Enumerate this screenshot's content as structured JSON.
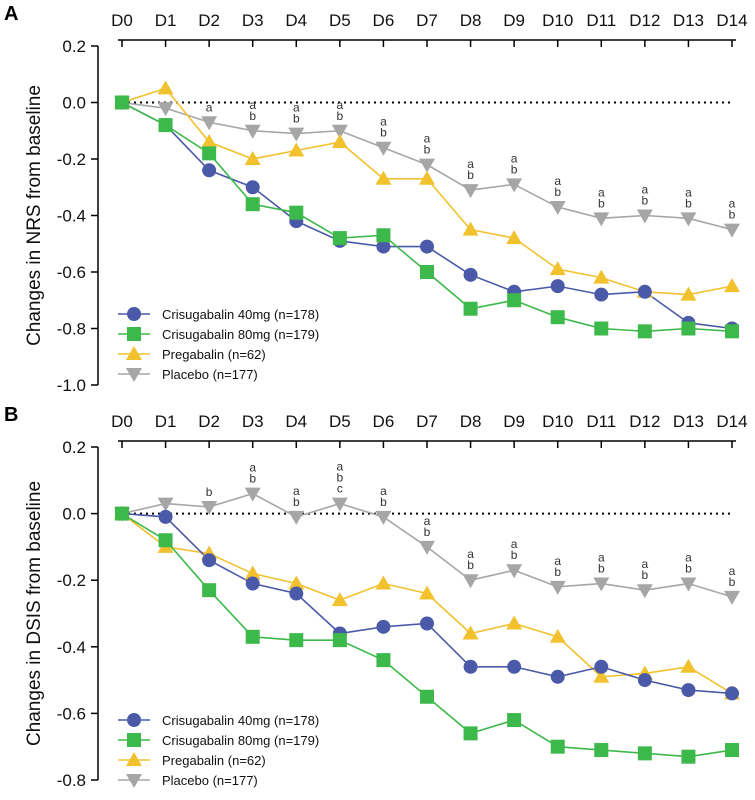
{
  "chart_data": [
    {
      "type": "line",
      "panel": "A",
      "title": "",
      "xlabel": "",
      "ylabel": "Changes in NRS from baseline",
      "categories": [
        "D0",
        "D1",
        "D2",
        "D3",
        "D4",
        "D5",
        "D6",
        "D7",
        "D8",
        "D9",
        "D10",
        "D11",
        "D12",
        "D13",
        "D14"
      ],
      "ylim": [
        -1.0,
        0.2
      ],
      "yticks": [
        0.2,
        0.0,
        -0.2,
        -0.4,
        -0.6,
        -0.8,
        -1.0
      ],
      "ytick_labels": [
        "0.2",
        "0.0",
        "-0.2",
        "-0.4",
        "-0.6",
        "-0.8",
        "-1.0"
      ],
      "reference_line": 0.0,
      "series": [
        {
          "name": "Crisugabalin 40mg (n=178)",
          "color": "#4a5aa8",
          "marker": "circle",
          "values": [
            0.0,
            -0.08,
            -0.24,
            -0.3,
            -0.42,
            -0.49,
            -0.51,
            -0.51,
            -0.61,
            -0.67,
            -0.65,
            -0.68,
            -0.67,
            -0.78,
            -0.8
          ]
        },
        {
          "name": "Crisugabalin 80mg (n=179)",
          "color": "#3cb94a",
          "marker": "square",
          "values": [
            0.0,
            -0.08,
            -0.18,
            -0.36,
            -0.39,
            -0.48,
            -0.47,
            -0.6,
            -0.73,
            -0.7,
            -0.76,
            -0.8,
            -0.81,
            -0.8,
            -0.81
          ]
        },
        {
          "name": "Pregabalin (n=62)",
          "color": "#f2c12e",
          "marker": "triangle-up",
          "values": [
            0.0,
            0.05,
            -0.14,
            -0.2,
            -0.17,
            -0.14,
            -0.27,
            -0.27,
            -0.45,
            -0.48,
            -0.59,
            -0.62,
            -0.67,
            -0.68,
            -0.65
          ]
        },
        {
          "name": "Placebo (n=177)",
          "color": "#a6a6a6",
          "marker": "triangle-down",
          "values": [
            0.0,
            -0.02,
            -0.07,
            -0.1,
            -0.11,
            -0.1,
            -0.16,
            -0.22,
            -0.31,
            -0.29,
            -0.37,
            -0.41,
            -0.4,
            -0.41,
            -0.45
          ]
        }
      ],
      "annotations": [
        {
          "day": "D2",
          "lines": [
            "a"
          ]
        },
        {
          "day": "D3",
          "lines": [
            "a",
            "b"
          ]
        },
        {
          "day": "D4",
          "lines": [
            "a",
            "b"
          ]
        },
        {
          "day": "D5",
          "lines": [
            "a",
            "b"
          ]
        },
        {
          "day": "D6",
          "lines": [
            "a",
            "b"
          ]
        },
        {
          "day": "D7",
          "lines": [
            "a",
            "b"
          ]
        },
        {
          "day": "D8",
          "lines": [
            "a",
            "b"
          ]
        },
        {
          "day": "D9",
          "lines": [
            "a",
            "b"
          ]
        },
        {
          "day": "D10",
          "lines": [
            "a",
            "b"
          ]
        },
        {
          "day": "D11",
          "lines": [
            "a",
            "b"
          ]
        },
        {
          "day": "D12",
          "lines": [
            "a",
            "b"
          ]
        },
        {
          "day": "D13",
          "lines": [
            "a",
            "b"
          ]
        },
        {
          "day": "D14",
          "lines": [
            "a",
            "b"
          ]
        }
      ],
      "legend_position": "bottom-left"
    },
    {
      "type": "line",
      "panel": "B",
      "title": "",
      "xlabel": "",
      "ylabel": "Changes in DSIS from baseline",
      "categories": [
        "D0",
        "D1",
        "D2",
        "D3",
        "D4",
        "D5",
        "D6",
        "D7",
        "D8",
        "D9",
        "D10",
        "D11",
        "D12",
        "D13",
        "D14"
      ],
      "ylim": [
        -0.8,
        0.2
      ],
      "yticks": [
        0.2,
        0.0,
        -0.2,
        -0.4,
        -0.6,
        -0.8
      ],
      "ytick_labels": [
        "0.2",
        "0.0",
        "-0.2",
        "-0.4",
        "-0.6",
        "-0.8"
      ],
      "reference_line": 0.0,
      "series": [
        {
          "name": "Crisugabalin 40mg (n=178)",
          "color": "#4a5aa8",
          "marker": "circle",
          "values": [
            0.0,
            -0.01,
            -0.14,
            -0.21,
            -0.24,
            -0.36,
            -0.34,
            -0.33,
            -0.46,
            -0.46,
            -0.49,
            -0.46,
            -0.5,
            -0.53,
            -0.54
          ]
        },
        {
          "name": "Crisugabalin 80mg (n=179)",
          "color": "#3cb94a",
          "marker": "square",
          "values": [
            0.0,
            -0.08,
            -0.23,
            -0.37,
            -0.38,
            -0.38,
            -0.44,
            -0.55,
            -0.66,
            -0.62,
            -0.7,
            -0.71,
            -0.72,
            -0.73,
            -0.71
          ]
        },
        {
          "name": "Pregabalin (n=62)",
          "color": "#f2c12e",
          "marker": "triangle-up",
          "values": [
            0.0,
            -0.1,
            -0.12,
            -0.18,
            -0.21,
            -0.26,
            -0.21,
            -0.24,
            -0.36,
            -0.33,
            -0.37,
            -0.49,
            -0.48,
            -0.46,
            -0.54
          ]
        },
        {
          "name": "Placebo (n=177)",
          "color": "#a6a6a6",
          "marker": "triangle-down",
          "values": [
            0.0,
            0.03,
            0.02,
            0.06,
            -0.01,
            0.03,
            -0.01,
            -0.1,
            -0.2,
            -0.17,
            -0.22,
            -0.21,
            -0.23,
            -0.21,
            -0.25
          ]
        }
      ],
      "annotations": [
        {
          "day": "D2",
          "lines": [
            "b"
          ]
        },
        {
          "day": "D3",
          "lines": [
            "a",
            "b"
          ]
        },
        {
          "day": "D4",
          "lines": [
            "a",
            "b"
          ]
        },
        {
          "day": "D5",
          "lines": [
            "a",
            "b",
            "c"
          ]
        },
        {
          "day": "D6",
          "lines": [
            "a",
            "b"
          ]
        },
        {
          "day": "D7",
          "lines": [
            "a",
            "b"
          ]
        },
        {
          "day": "D8",
          "lines": [
            "a",
            "b"
          ]
        },
        {
          "day": "D9",
          "lines": [
            "a",
            "b"
          ]
        },
        {
          "day": "D10",
          "lines": [
            "a",
            "b"
          ]
        },
        {
          "day": "D11",
          "lines": [
            "a",
            "b"
          ]
        },
        {
          "day": "D12",
          "lines": [
            "a",
            "b"
          ]
        },
        {
          "day": "D13",
          "lines": [
            "a",
            "b"
          ]
        },
        {
          "day": "D14",
          "lines": [
            "a",
            "b"
          ]
        }
      ],
      "legend_position": "bottom-left"
    }
  ]
}
